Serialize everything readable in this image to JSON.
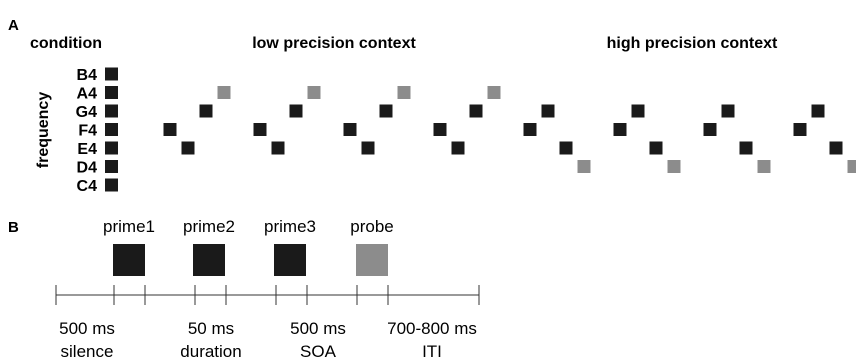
{
  "panel_a": {
    "label": "A",
    "condition_header": "condition",
    "axis_label": "frequency",
    "notes": [
      "B4",
      "A4",
      "G4",
      "F4",
      "E4",
      "D4",
      "C4"
    ],
    "contexts": [
      {
        "title": "low precision context",
        "trials": [
          {
            "primes": [
              "F4",
              "E4",
              "G4"
            ],
            "probe": "A4"
          },
          {
            "primes": [
              "F4",
              "E4",
              "G4"
            ],
            "probe": "A4"
          },
          {
            "primes": [
              "F4",
              "E4",
              "G4"
            ],
            "probe": "A4"
          },
          {
            "primes": [
              "F4",
              "E4",
              "G4"
            ],
            "probe": "A4"
          }
        ]
      },
      {
        "title": "high precision context",
        "trials": [
          {
            "primes": [
              "F4",
              "G4",
              "E4"
            ],
            "probe": "D4"
          },
          {
            "primes": [
              "F4",
              "G4",
              "E4"
            ],
            "probe": "D4"
          },
          {
            "primes": [
              "F4",
              "G4",
              "E4"
            ],
            "probe": "D4"
          },
          {
            "primes": [
              "F4",
              "G4",
              "E4"
            ],
            "probe": "D4"
          }
        ]
      }
    ],
    "colors": {
      "prime": "#1a1a1a",
      "probe": "#8c8c8c"
    }
  },
  "panel_b": {
    "label": "B",
    "stimuli": [
      "prime1",
      "prime2",
      "prime3",
      "probe"
    ],
    "timeline": [
      {
        "top": "500 ms",
        "bottom": "silence"
      },
      {
        "top": "50 ms",
        "bottom": "duration"
      },
      {
        "top": "500 ms",
        "bottom": "SOA"
      },
      {
        "top": "700-800 ms",
        "bottom": "ITI"
      }
    ]
  }
}
